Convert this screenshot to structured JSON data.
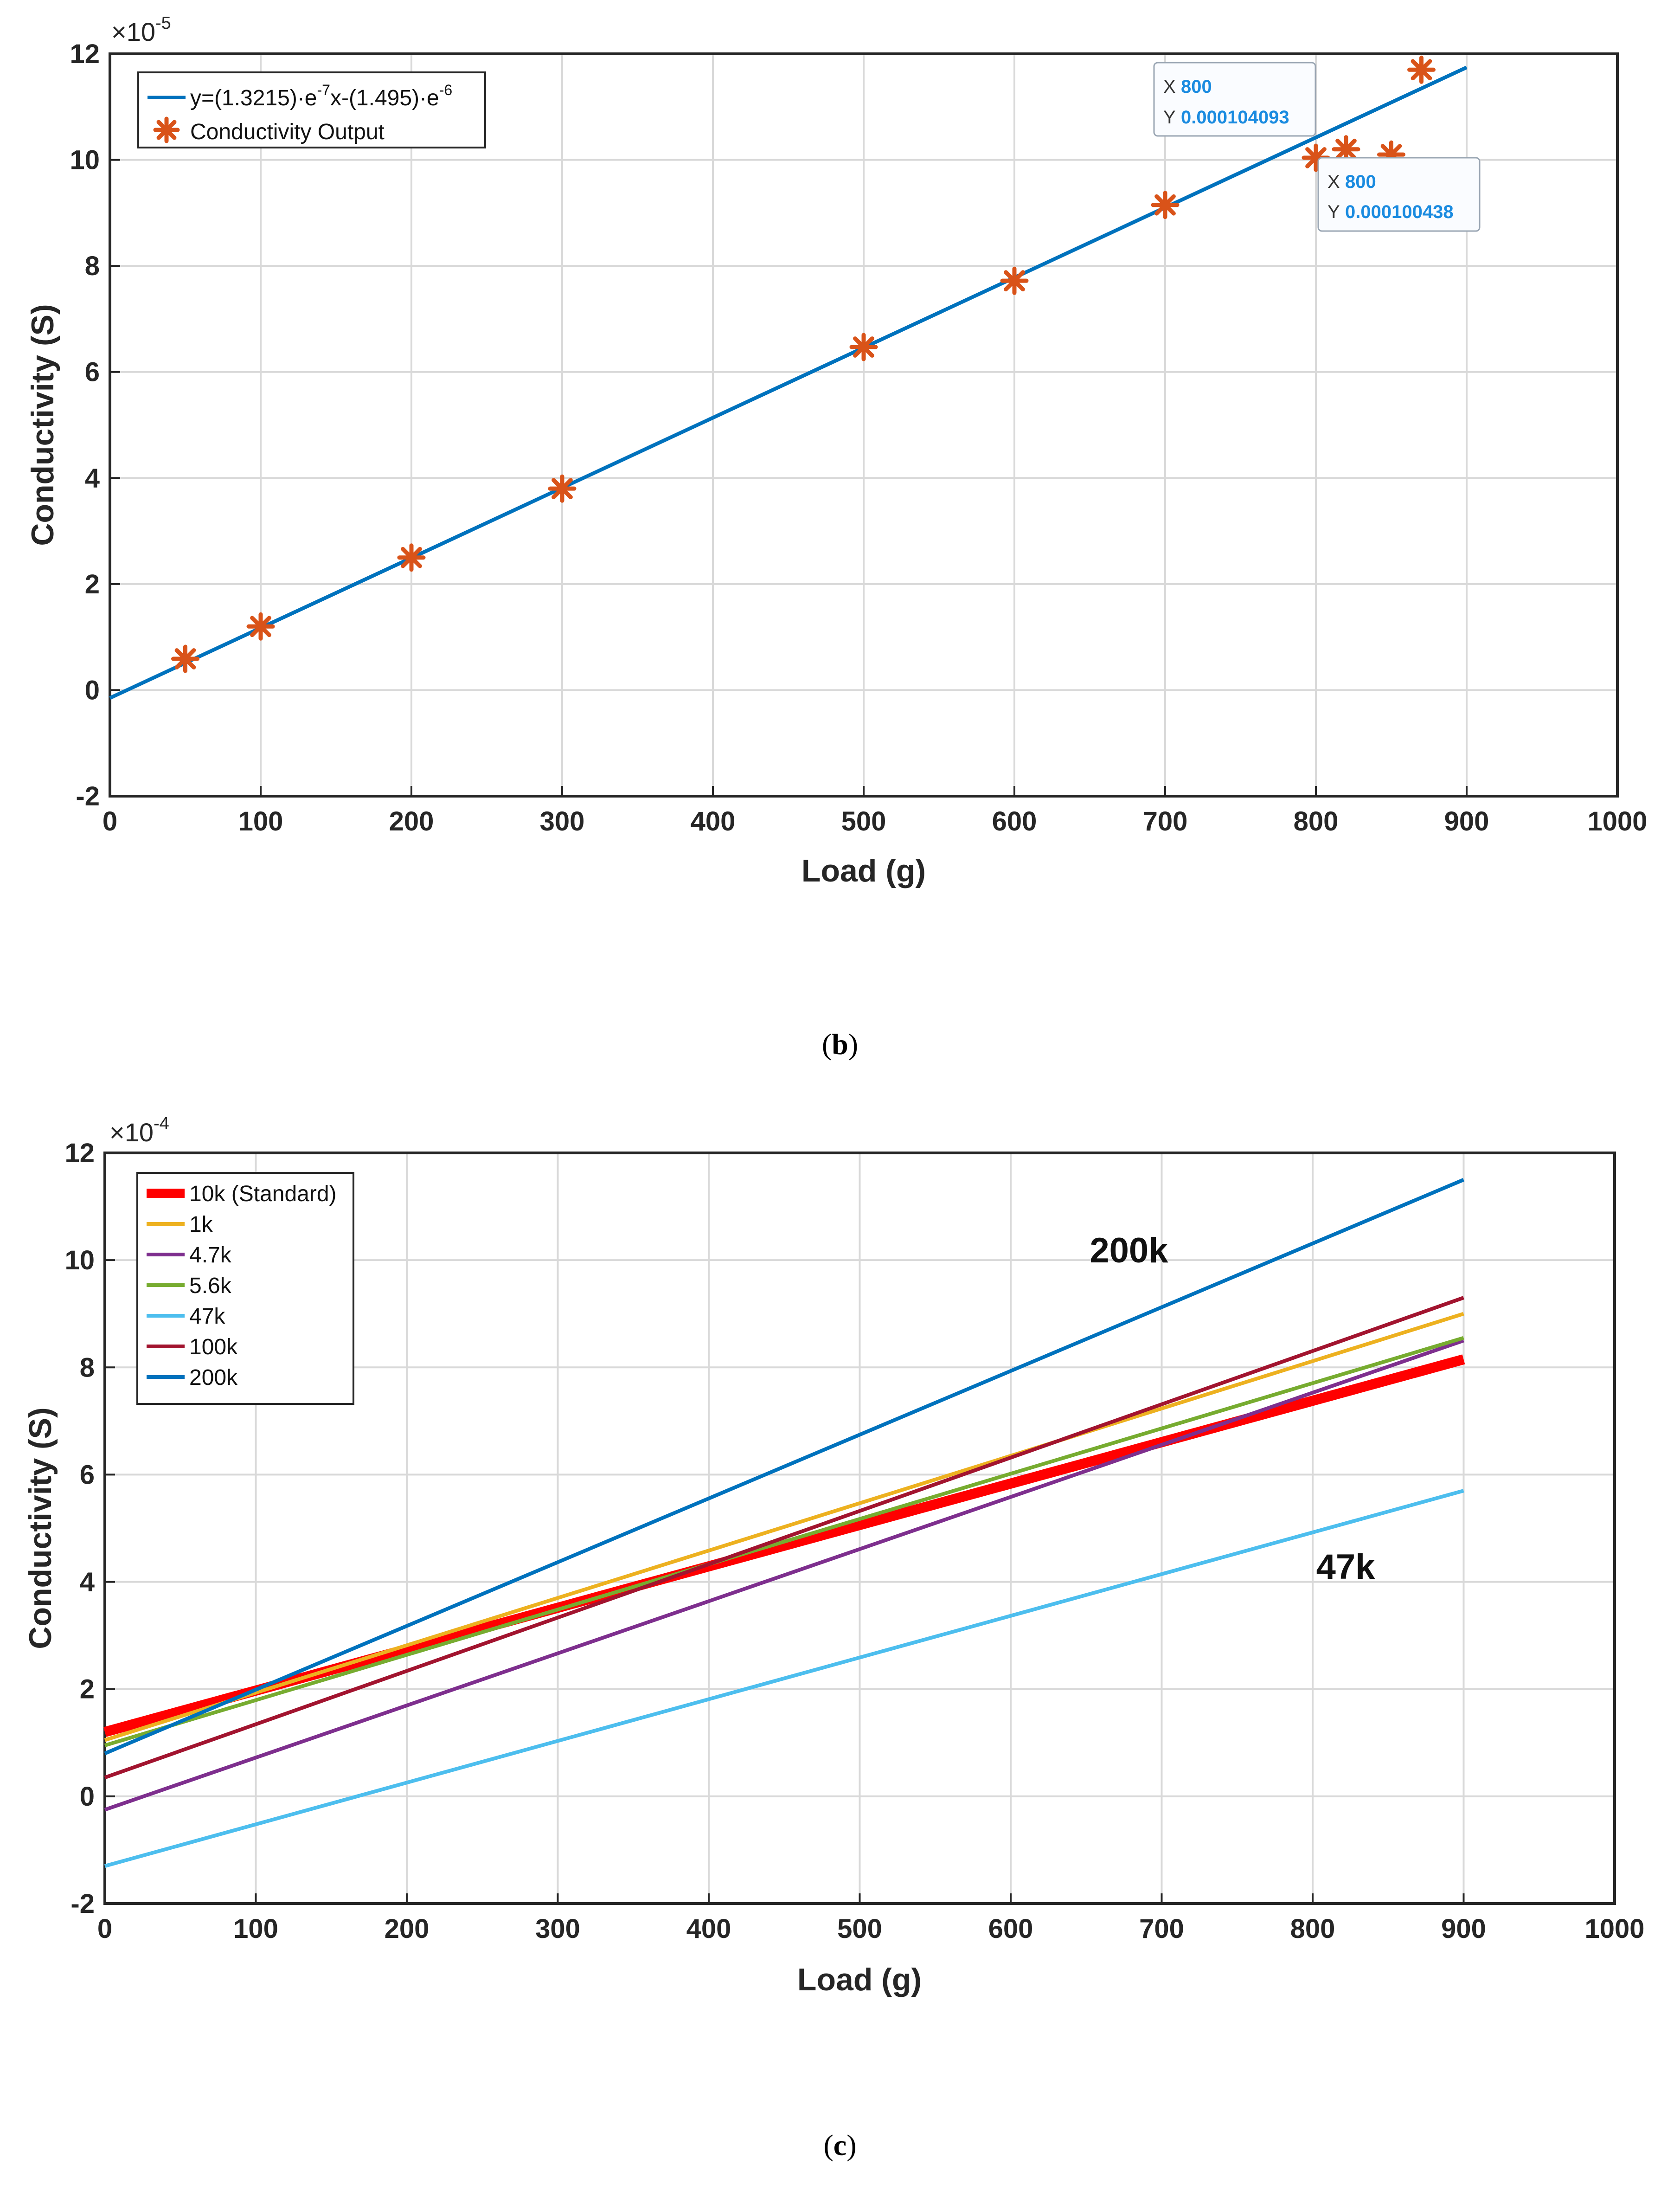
{
  "chart_data": [
    {
      "type": "scatter",
      "caption": "(b)",
      "xlabel": "Load (g)",
      "ylabel": "Conductivity (S)",
      "y_multiplier": "×10",
      "y_multiplier_exp": "-5",
      "xlim": [
        0,
        1000
      ],
      "ylim": [
        -2,
        12
      ],
      "xticks": [
        0,
        100,
        200,
        300,
        400,
        500,
        600,
        700,
        800,
        900,
        1000
      ],
      "yticks": [
        -2,
        0,
        2,
        4,
        6,
        8,
        10,
        12
      ],
      "grid": true,
      "legend_position": "top-left",
      "series": [
        {
          "name": "y=(1.3215)·e-7x-(1.495)·e-6",
          "kind": "fit-line",
          "color": "#0072bd",
          "x": [
            0,
            900
          ],
          "y": [
            -0.1495,
            11.744
          ]
        },
        {
          "name": "Conductivity Output",
          "kind": "markers",
          "color": "#d95319",
          "x": [
            50,
            100,
            200,
            300,
            500,
            600,
            700,
            800,
            820,
            850,
            870
          ],
          "y": [
            0.59,
            1.2,
            2.5,
            3.8,
            6.47,
            7.72,
            9.15,
            10.04,
            10.2,
            10.1,
            11.7
          ]
        }
      ],
      "legend_parts": {
        "fit_prefix": "y=(1.3215)·e",
        "fit_exp1": "-7",
        "fit_middle": "x-(1.495)·e",
        "fit_exp2": "-6",
        "markers_label": "Conductivity Output"
      },
      "datatips": [
        {
          "x_label": "X",
          "x_value": "800",
          "y_label": "Y",
          "y_value": "0.000104093",
          "x": 800,
          "y": 10.41
        },
        {
          "x_label": "X",
          "x_value": "800",
          "y_label": "Y",
          "y_value": "0.000100438",
          "x": 800,
          "y": 10.04
        }
      ]
    },
    {
      "type": "line",
      "caption": "(c)",
      "xlabel": "Load (g)",
      "ylabel": "Conductivity (S)",
      "y_multiplier": "×10",
      "y_multiplier_exp": "-4",
      "xlim": [
        0,
        1000
      ],
      "ylim": [
        -2,
        12
      ],
      "xticks": [
        0,
        100,
        200,
        300,
        400,
        500,
        600,
        700,
        800,
        900,
        1000
      ],
      "yticks": [
        -2,
        0,
        2,
        4,
        6,
        8,
        10,
        12
      ],
      "grid": true,
      "legend_position": "top-left",
      "series": [
        {
          "name": "10k (Standard)",
          "color": "#ff0000",
          "width": 3,
          "x": [
            0,
            900
          ],
          "y": [
            1.2,
            8.15
          ]
        },
        {
          "name": "1k",
          "color": "#edb120",
          "width": 1,
          "x": [
            0,
            900
          ],
          "y": [
            1.05,
            9.0
          ]
        },
        {
          "name": "4.7k",
          "color": "#7e2f8e",
          "width": 1,
          "x": [
            0,
            900
          ],
          "y": [
            -0.25,
            8.5
          ]
        },
        {
          "name": "5.6k",
          "color": "#77ac30",
          "width": 1,
          "x": [
            0,
            900
          ],
          "y": [
            0.95,
            8.55
          ]
        },
        {
          "name": "47k",
          "color": "#4dbeee",
          "width": 1,
          "x": [
            0,
            900
          ],
          "y": [
            -1.3,
            5.7
          ]
        },
        {
          "name": "100k",
          "color": "#a2142f",
          "width": 1,
          "x": [
            0,
            900
          ],
          "y": [
            0.35,
            9.3
          ]
        },
        {
          "name": "200k",
          "color": "#0072bd",
          "width": 1,
          "x": [
            0,
            900
          ],
          "y": [
            0.8,
            11.5
          ]
        }
      ],
      "annotations": [
        {
          "text": "200k",
          "x": 680,
          "y": 10.2
        },
        {
          "text": "47k",
          "x": 830,
          "y": 4.3
        }
      ]
    }
  ]
}
